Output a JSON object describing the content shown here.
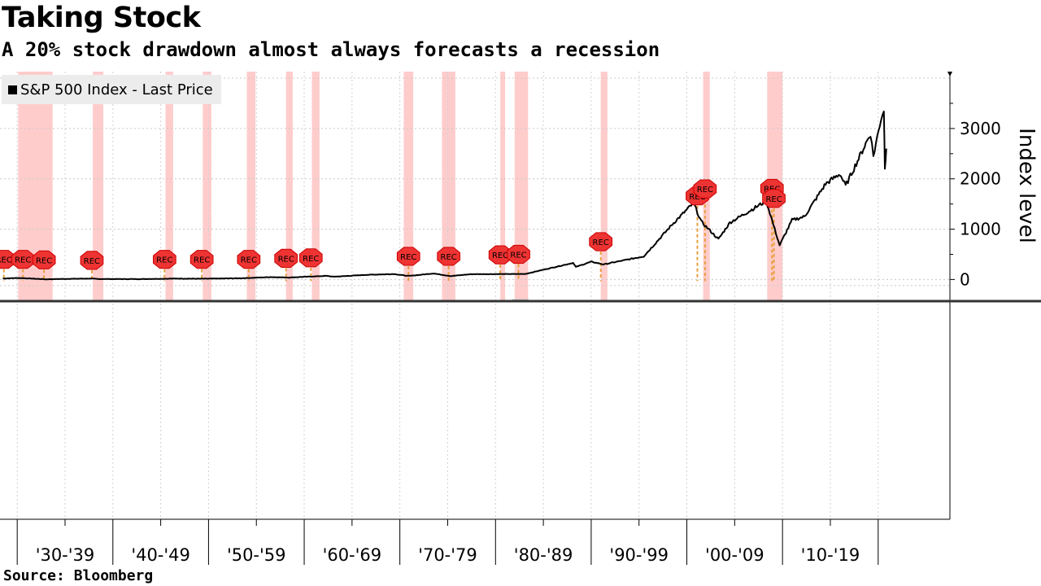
{
  "title": "Taking Stock",
  "subtitle": "A 20% stock drawdown almost always forecasts a recession",
  "source": "Source: Bloomberg",
  "colors": {
    "line": "#000000",
    "recession_band": "#ffcccc",
    "marker": "#ee3333",
    "drawdown": "#e8a040"
  },
  "chart_data": {
    "type": "line",
    "title": "Taking Stock",
    "ylabel": "Index level",
    "xlabel": "",
    "ylim": [
      -430,
      4130
    ],
    "xlim": [
      1927.7,
      2027
    ],
    "y_ticks": [
      0,
      1000,
      2000,
      3000
    ],
    "x_tick_labels": [
      "'30-'39",
      "'40-'49",
      "'50-'59",
      "'60-'69",
      "'70-'79",
      "'80-'89",
      "'90-'99",
      "'00-'09",
      "'10-'19"
    ],
    "x_tick_label_centers": [
      1934.5,
      1944.5,
      1954.5,
      1964.5,
      1974.5,
      1984.5,
      1994.5,
      2004.5,
      2014.5
    ],
    "x_major_boundaries": [
      1929.5,
      1939.5,
      1949.5,
      1959.5,
      1969.5,
      1979.5,
      1989.5,
      1999.5,
      2009.5,
      2019.5
    ],
    "legend": [
      {
        "name": "S&P 500 Index - Last Price",
        "color": "#000000"
      }
    ],
    "series": [
      {
        "name": "S&P 500 Index - Last Price",
        "x": [
          1928,
          1929.7,
          1932.5,
          1934,
          1937,
          1938,
          1942,
          1946,
          1949,
          1953,
          1956,
          1957.9,
          1961.9,
          1962.5,
          1966,
          1968.9,
          1970.4,
          1973,
          1974.8,
          1976.9,
          1980,
          1982.6,
          1987.6,
          1987.9,
          1989.5,
          1990.8,
          1995,
          1998,
          2000.2,
          2001,
          2002.8,
          2004,
          2007.8,
          2009.2,
          2010.5,
          2011.8,
          2014,
          2015.5,
          2016.1,
          2018.7,
          2019,
          2019.8,
          2020.1,
          2020.2,
          2020.35
        ],
        "values": [
          20,
          30,
          5,
          10,
          18,
          10,
          8,
          18,
          15,
          25,
          48,
          40,
          72,
          55,
          92,
          108,
          70,
          120,
          68,
          105,
          108,
          110,
          330,
          250,
          353,
          300,
          460,
          1100,
          1520,
          1150,
          800,
          1130,
          1560,
          680,
          1180,
          1250,
          1900,
          2100,
          1860,
          2900,
          2450,
          3200,
          3380,
          2240,
          2600
        ]
      }
    ],
    "recession_bands": [
      [
        1929.6,
        1933.2
      ],
      [
        1937.4,
        1938.5
      ],
      [
        1945.0,
        1945.8
      ],
      [
        1948.9,
        1949.8
      ],
      [
        1953.5,
        1954.4
      ],
      [
        1957.6,
        1958.3
      ],
      [
        1960.3,
        1961.1
      ],
      [
        1969.9,
        1970.9
      ],
      [
        1973.9,
        1975.3
      ],
      [
        1980.0,
        1980.5
      ],
      [
        1981.5,
        1982.9
      ],
      [
        1990.5,
        1991.2
      ],
      [
        2001.2,
        2001.9
      ],
      [
        2007.9,
        2009.5
      ]
    ],
    "rec_markers": [
      {
        "label": "REC",
        "x": 1928.1,
        "y": 400
      },
      {
        "label": "REC",
        "x": 1930.1,
        "y": 400
      },
      {
        "label": "REC",
        "x": 1932.3,
        "y": 390
      },
      {
        "label": "REC",
        "x": 1937.3,
        "y": 380
      },
      {
        "label": "REC",
        "x": 1944.9,
        "y": 400
      },
      {
        "label": "REC",
        "x": 1948.8,
        "y": 400
      },
      {
        "label": "REC",
        "x": 1953.7,
        "y": 400
      },
      {
        "label": "REC",
        "x": 1957.6,
        "y": 420
      },
      {
        "label": "REC",
        "x": 1960.2,
        "y": 430
      },
      {
        "label": "REC",
        "x": 1970.4,
        "y": 460
      },
      {
        "label": "REC",
        "x": 1974.6,
        "y": 460
      },
      {
        "label": "REC",
        "x": 1980.0,
        "y": 490
      },
      {
        "label": "REC",
        "x": 1981.9,
        "y": 500
      },
      {
        "label": "REC",
        "x": 1990.5,
        "y": 750
      },
      {
        "label": "REC",
        "x": 2000.6,
        "y": 1660
      },
      {
        "label": "REC",
        "x": 2001.4,
        "y": 1800
      },
      {
        "label": "REC",
        "x": 2008.4,
        "y": 1810
      },
      {
        "label": "REC",
        "x": 2008.6,
        "y": 1610
      }
    ]
  }
}
